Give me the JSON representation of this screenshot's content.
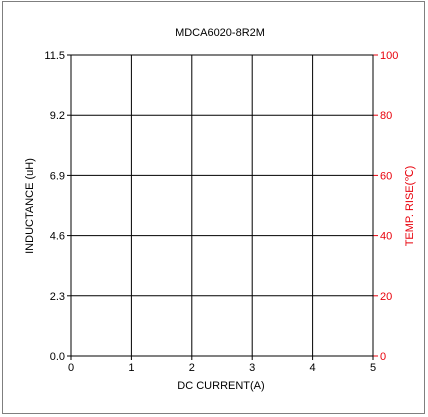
{
  "chart_data": {
    "type": "line",
    "title": "MDCA6020-8R2M",
    "xlabel": "DC CURRENT(A)",
    "ylabel": "INDUCTANCE (uH)",
    "y2label": "TEMP. RISE(℃)",
    "xlim": [
      0,
      5
    ],
    "ylim": [
      0,
      11.5
    ],
    "y2lim": [
      0,
      100
    ],
    "x_ticks": [
      "0",
      "1",
      "2",
      "3",
      "4",
      "5"
    ],
    "y_ticks": [
      "0.0",
      "2.3",
      "4.6",
      "6.9",
      "9.2",
      "11.5"
    ],
    "y2_ticks": [
      "0",
      "20",
      "40",
      "60",
      "80",
      "100"
    ],
    "grid": true,
    "series": []
  },
  "colors": {
    "primary_axis": "#000000",
    "secondary_axis": "#e8000b",
    "frame": "#7f7f7f"
  }
}
